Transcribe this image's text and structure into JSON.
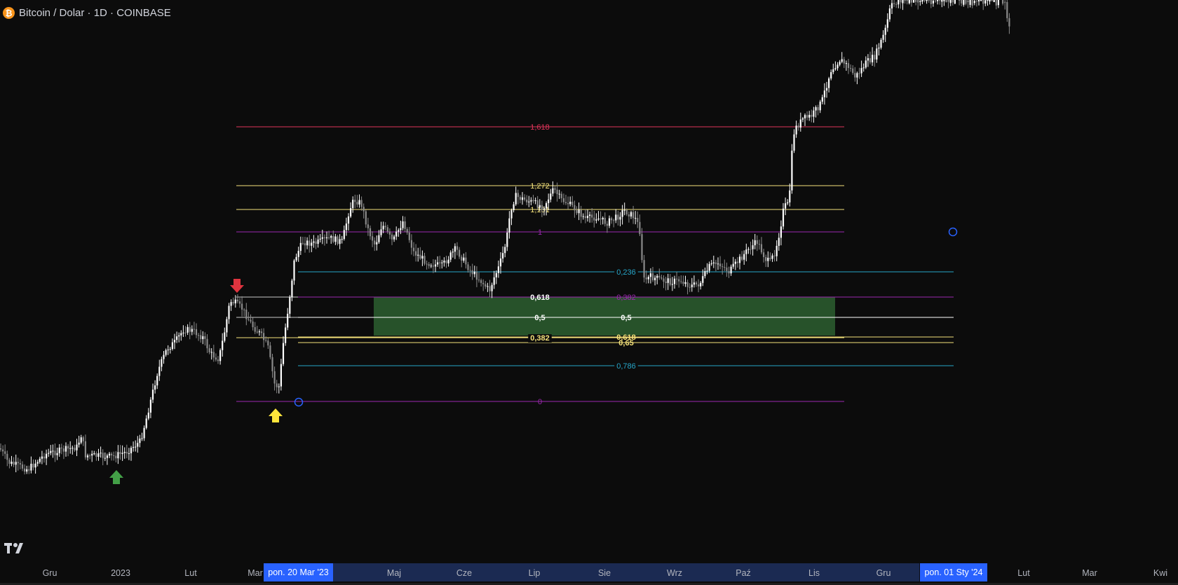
{
  "header": {
    "symbol_icon": "bitcoin-icon",
    "title": "Bitcoin / Dolar · 1D · COINBASE"
  },
  "time_axis": {
    "labels": [
      "Gru",
      "2023",
      "Lut",
      "Mar",
      "Maj",
      "Cze",
      "Lip",
      "Sie",
      "Wrz",
      "Paź",
      "Lis",
      "Gru",
      "Lut",
      "Mar",
      "Kwi"
    ],
    "highlight_start": "pon. 20 Mar '23",
    "highlight_end": "pon. 01 Sty '24"
  },
  "fib_extension": {
    "levels": [
      "1,618",
      "1,272",
      "1,131",
      "1",
      "0,236",
      "0,382",
      "0,5",
      "0,618",
      "0,65",
      "0,786",
      "0"
    ],
    "colors": {
      "1,618": "#e0345a",
      "1,272": "#f5e27a",
      "1,131": "#f5e27a",
      "1": "#9c27b0",
      "0,236": "#26a6c9",
      "0": "#9c27b0"
    }
  },
  "fib_retracement_a": {
    "levels": [
      "0,618",
      "0,5",
      "0,382"
    ]
  },
  "fib_retracement_b": {
    "levels": [
      "0,236",
      "0,382",
      "0,5",
      "0,618",
      "0,65",
      "0,786"
    ]
  },
  "zone_color": "#2a5a2e",
  "markers": {
    "red_arrow": "arrow-down-icon",
    "yellow_arrow": "arrow-up-icon",
    "green_arrow": "arrow-up-icon"
  },
  "chart_data": {
    "type": "candlestick",
    "title": "Bitcoin / Dolar · 1D · COINBASE",
    "x_range": [
      "2022-11",
      "2024-04"
    ],
    "approx_path_usd": [
      [
        "2022-11-01",
        20500
      ],
      [
        "2022-12-01",
        17000
      ],
      [
        "2023-01-01",
        16600
      ],
      [
        "2023-01-20",
        22500
      ],
      [
        "2023-02-15",
        24500
      ],
      [
        "2023-03-10",
        19900
      ],
      [
        "2023-03-20",
        28000
      ],
      [
        "2023-04-14",
        30800
      ],
      [
        "2023-06-15",
        25000
      ],
      [
        "2023-07-13",
        31500
      ],
      [
        "2023-08-18",
        26000
      ],
      [
        "2023-09-11",
        25000
      ],
      [
        "2023-10-20",
        29500
      ],
      [
        "2023-10-24",
        34500
      ],
      [
        "2023-12-08",
        44000
      ],
      [
        "2024-01-11",
        49000
      ]
    ]
  }
}
